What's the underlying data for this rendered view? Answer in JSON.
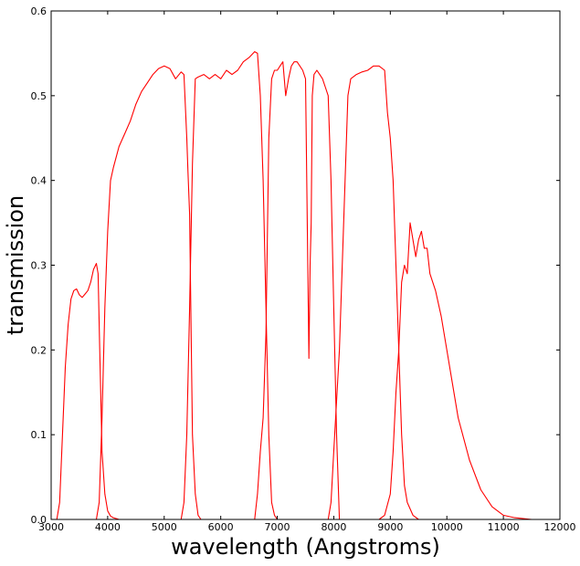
{
  "chart_data": {
    "type": "line",
    "title": "",
    "xlabel": "wavelength (Angstroms)",
    "ylabel": "transmission",
    "xlim": [
      3000,
      12000
    ],
    "ylim": [
      0.0,
      0.6
    ],
    "xticks": [
      3000,
      4000,
      5000,
      6000,
      7000,
      8000,
      9000,
      10000,
      11000,
      12000
    ],
    "xtick_labels": [
      "3000",
      "4000",
      "5000",
      "6000",
      "7000",
      "8000",
      "9000",
      "10000",
      "11000",
      "12000"
    ],
    "yticks": [
      0.0,
      0.1,
      0.2,
      0.3,
      0.4,
      0.5,
      0.6
    ],
    "ytick_labels": [
      "0.0",
      "0.1",
      "0.2",
      "0.3",
      "0.4",
      "0.5",
      "0.6"
    ],
    "grid": false,
    "line_color": "#ff0000",
    "series": [
      {
        "x": [
          3100,
          3150,
          3200,
          3250,
          3300,
          3350,
          3400,
          3450,
          3500,
          3550,
          3600,
          3650,
          3700,
          3750,
          3800,
          3830,
          3860,
          3900,
          3950,
          4000,
          4050,
          4100,
          4200
        ],
        "y": [
          0.0,
          0.02,
          0.1,
          0.18,
          0.23,
          0.26,
          0.27,
          0.272,
          0.265,
          0.262,
          0.266,
          0.27,
          0.28,
          0.295,
          0.302,
          0.29,
          0.2,
          0.08,
          0.03,
          0.01,
          0.004,
          0.002,
          0.0
        ]
      },
      {
        "x": [
          3800,
          3850,
          3900,
          3950,
          4000,
          4050,
          4100,
          4200,
          4300,
          4400,
          4500,
          4600,
          4700,
          4800,
          4900,
          5000,
          5100,
          5200,
          5300,
          5350,
          5400,
          5420,
          5450,
          5480,
          5500,
          5550,
          5600,
          5650
        ],
        "y": [
          0.0,
          0.02,
          0.12,
          0.25,
          0.34,
          0.4,
          0.415,
          0.44,
          0.455,
          0.47,
          0.49,
          0.505,
          0.515,
          0.525,
          0.532,
          0.535,
          0.532,
          0.52,
          0.528,
          0.525,
          0.45,
          0.41,
          0.36,
          0.2,
          0.1,
          0.03,
          0.005,
          0.0
        ]
      },
      {
        "x": [
          5300,
          5350,
          5400,
          5450,
          5500,
          5550,
          5600,
          5700,
          5800,
          5900,
          6000,
          6100,
          6200,
          6300,
          6400,
          6500,
          6600,
          6650,
          6700,
          6750,
          6800,
          6850,
          6900,
          6950,
          7000
        ],
        "y": [
          0.0,
          0.02,
          0.1,
          0.25,
          0.42,
          0.52,
          0.522,
          0.525,
          0.52,
          0.525,
          0.52,
          0.53,
          0.525,
          0.53,
          0.54,
          0.545,
          0.552,
          0.55,
          0.5,
          0.4,
          0.25,
          0.1,
          0.02,
          0.005,
          0.0
        ]
      },
      {
        "x": [
          6600,
          6650,
          6700,
          6750,
          6800,
          6850,
          6900,
          6950,
          7000,
          7050,
          7100,
          7150,
          7200,
          7250,
          7300,
          7350,
          7400,
          7450,
          7500,
          7560,
          7580,
          7600,
          7620,
          7650,
          7700,
          7750,
          7800,
          7850,
          7900,
          7950,
          8000,
          8050,
          8100
        ],
        "y": [
          0.0,
          0.03,
          0.08,
          0.12,
          0.22,
          0.45,
          0.52,
          0.53,
          0.53,
          0.535,
          0.54,
          0.5,
          0.52,
          0.535,
          0.54,
          0.54,
          0.535,
          0.53,
          0.52,
          0.19,
          0.3,
          0.35,
          0.5,
          0.525,
          0.53,
          0.525,
          0.52,
          0.51,
          0.5,
          0.4,
          0.25,
          0.1,
          0.0
        ]
      },
      {
        "x": [
          7900,
          7950,
          8000,
          8050,
          8100,
          8150,
          8200,
          8250,
          8300,
          8400,
          8500,
          8600,
          8700,
          8800,
          8900,
          8950,
          9000,
          9050,
          9100,
          9150,
          9200,
          9250,
          9300,
          9400,
          9500
        ],
        "y": [
          0.0,
          0.02,
          0.08,
          0.14,
          0.2,
          0.3,
          0.4,
          0.5,
          0.52,
          0.525,
          0.528,
          0.53,
          0.535,
          0.535,
          0.53,
          0.48,
          0.45,
          0.4,
          0.3,
          0.2,
          0.1,
          0.04,
          0.02,
          0.005,
          0.0
        ]
      },
      {
        "x": [
          8800,
          8900,
          9000,
          9050,
          9100,
          9150,
          9200,
          9250,
          9300,
          9350,
          9400,
          9450,
          9500,
          9550,
          9600,
          9650,
          9700,
          9800,
          9900,
          10000,
          10100,
          10200,
          10400,
          10600,
          10800,
          11000,
          11200,
          11500
        ],
        "y": [
          0.0,
          0.005,
          0.03,
          0.08,
          0.15,
          0.2,
          0.28,
          0.3,
          0.29,
          0.35,
          0.33,
          0.31,
          0.33,
          0.34,
          0.32,
          0.32,
          0.29,
          0.27,
          0.24,
          0.2,
          0.16,
          0.12,
          0.07,
          0.035,
          0.015,
          0.005,
          0.002,
          0.0
        ]
      }
    ]
  }
}
